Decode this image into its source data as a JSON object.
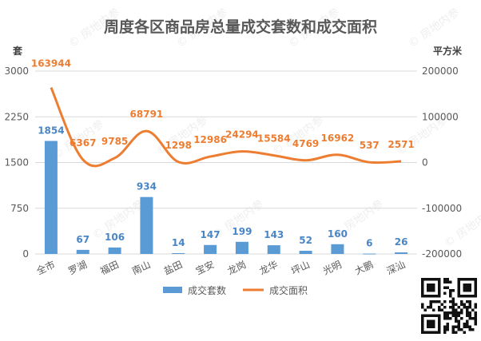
{
  "chart_data": {
    "type": "bar+line",
    "title": "周度各区商品房总量成交套数和成交面积",
    "categories": [
      "全市",
      "罗湖",
      "福田",
      "南山",
      "盐田",
      "宝安",
      "龙岗",
      "龙华",
      "坪山",
      "光明",
      "大鹏",
      "深汕"
    ],
    "y_left": {
      "label": "套",
      "min": 0,
      "max": 3000,
      "ticks": [
        0,
        750,
        1500,
        2250,
        3000
      ],
      "tick_labels": [
        "0",
        "750",
        "1500",
        "2250",
        "3000"
      ]
    },
    "y_right": {
      "label": "平方米",
      "min": -200000,
      "max": 200000,
      "ticks": [
        -200000,
        -100000,
        0,
        100000,
        200000
      ],
      "tick_labels": [
        "-200000",
        "-100000",
        "0",
        "100000",
        "200000"
      ]
    },
    "series": [
      {
        "name": "成交套数",
        "type": "bar",
        "axis": "left",
        "values": [
          1854,
          67,
          106,
          934,
          14,
          147,
          199,
          143,
          52,
          160,
          6,
          26
        ],
        "labels": [
          "1854",
          "67",
          "106",
          "934",
          "14",
          "147",
          "199",
          "143",
          "52",
          "160",
          "6",
          "26"
        ]
      },
      {
        "name": "成交面积",
        "type": "line",
        "axis": "right",
        "smooth": true,
        "values": [
          163944,
          6367,
          9785,
          68791,
          1298,
          12986,
          24294,
          15584,
          4769,
          16962,
          537,
          2571
        ],
        "labels": [
          "163944",
          "6367",
          "9785",
          "68791",
          "1298",
          "12986",
          "24294",
          "15584",
          "4769",
          "16962",
          "537",
          "2571"
        ]
      }
    ],
    "legend_position": "bottom",
    "grid": true,
    "colors": {
      "bar": "#5b9bd5",
      "line": "#ed7d31",
      "bar_label": "#4a86c5",
      "line_label": "#ed7d31",
      "title": "#595959",
      "axis_text": "#595959",
      "grid": "#d9d9d9"
    },
    "watermark": "房地内参"
  }
}
